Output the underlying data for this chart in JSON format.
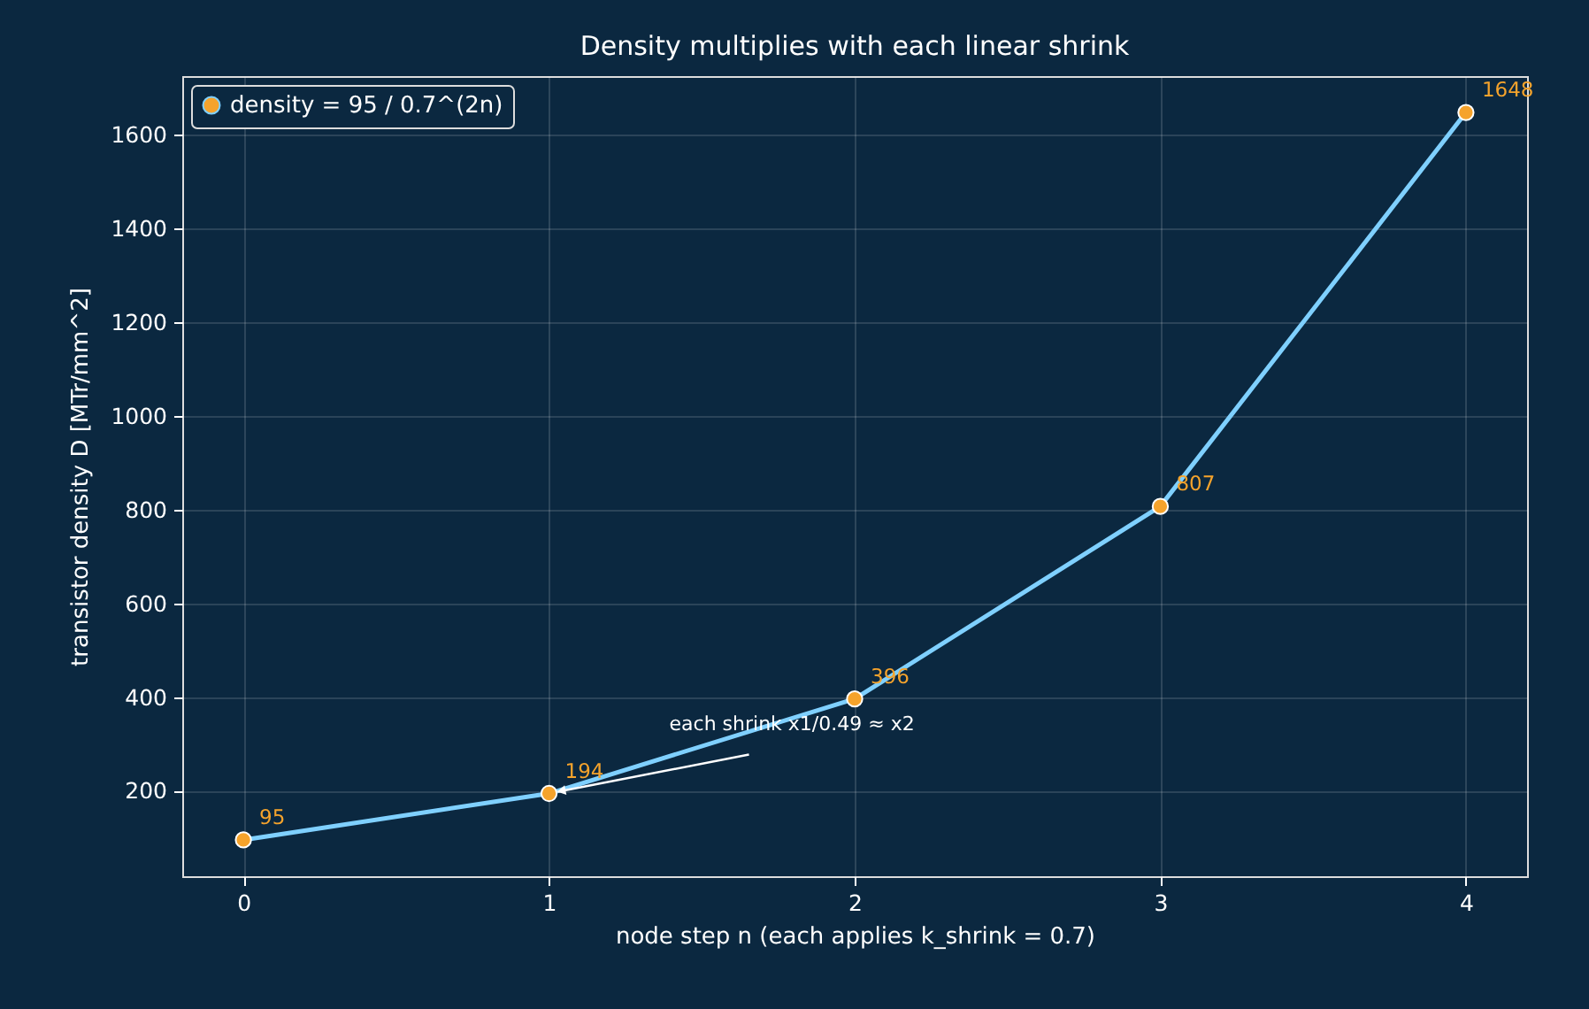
{
  "chart_data": {
    "type": "line",
    "title": "Density multiplies with each linear shrink",
    "xlabel": "node step  n  (each applies k_shrink = 0.7)",
    "ylabel": "transistor density  D  [MTr/mm^2]",
    "x": [
      0,
      1,
      2,
      3,
      4
    ],
    "series": [
      {
        "name": "density = 95 / 0.7^(2n)",
        "color": "#7fd0ff",
        "colors": [
          "#f5a32c",
          "#f5a32c",
          "#f5a32c",
          "#f5a32c",
          "#f5a32c"
        ],
        "values": [
          95,
          194,
          396,
          807,
          1648
        ]
      }
    ],
    "data_labels": true,
    "marker": "circle",
    "line_style": "solid",
    "grid": true,
    "legend": "top left",
    "xlim": [
      -0.2,
      4.2
    ],
    "xticks": [
      0,
      1,
      2,
      3,
      4
    ],
    "ylim": [
      17.35,
      1725.65
    ],
    "yticks": [
      200,
      400,
      600,
      800,
      1000,
      1200,
      1400,
      1600
    ],
    "annotations": [
      {
        "text": "each shrink x1/0.49 ≈ x2",
        "x": 1,
        "y": 194
      }
    ]
  }
}
